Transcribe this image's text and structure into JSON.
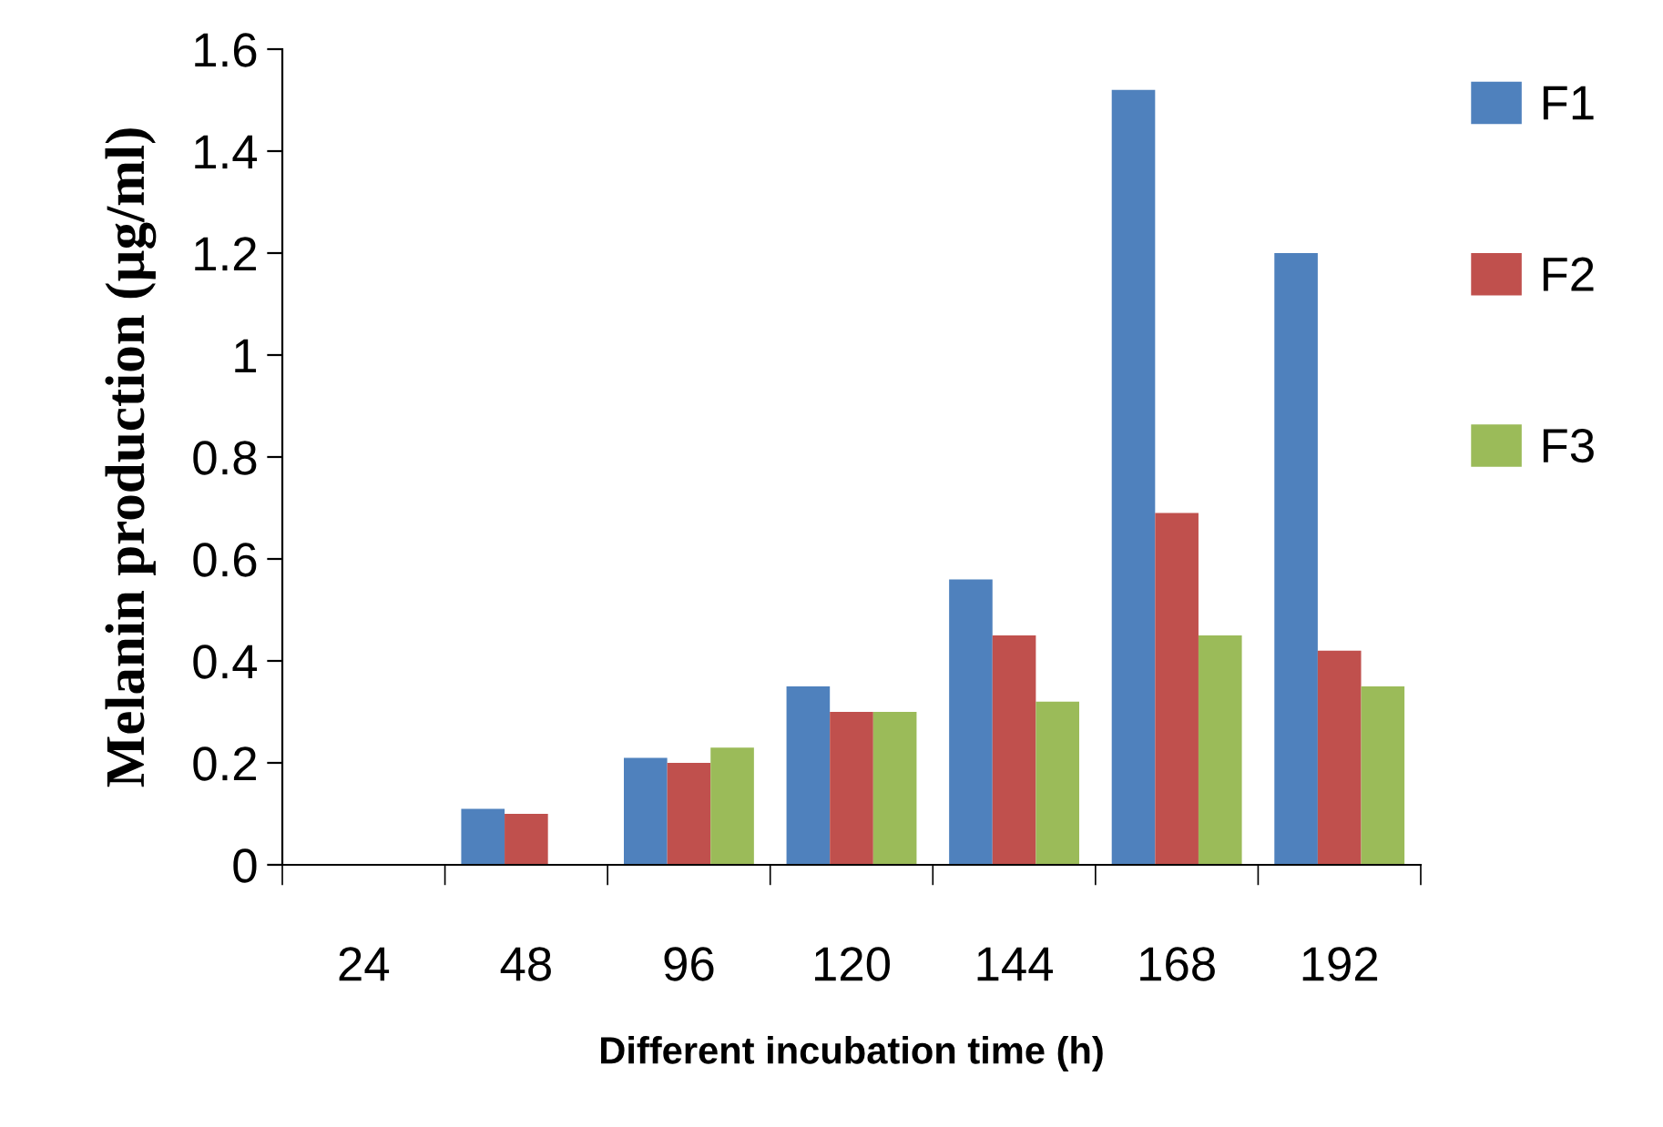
{
  "chart_data": {
    "type": "bar",
    "xlabel": "Different incubation time (h)",
    "ylabel": "Melanin production (µg/ml)",
    "categories": [
      "24",
      "48",
      "96",
      "120",
      "144",
      "168",
      "192"
    ],
    "series": [
      {
        "name": "F1",
        "color": "#4f81bd",
        "values": [
          0,
          0.11,
          0.21,
          0.35,
          0.56,
          1.52,
          1.2
        ]
      },
      {
        "name": "F2",
        "color": "#c0504d",
        "values": [
          0,
          0.1,
          0.2,
          0.3,
          0.45,
          0.69,
          0.42
        ]
      },
      {
        "name": "F3",
        "color": "#9bbb59",
        "values": [
          0,
          0,
          0.23,
          0.3,
          0.32,
          0.45,
          0.35
        ]
      }
    ],
    "ylim": [
      0,
      1.6
    ],
    "yticks": [
      {
        "value": 0,
        "label": "0"
      },
      0.2,
      0.4,
      0.6,
      0.8,
      {
        "value": 1,
        "label": "1"
      },
      1.2,
      1.4,
      1.6
    ],
    "grid": false,
    "legend": "right"
  }
}
